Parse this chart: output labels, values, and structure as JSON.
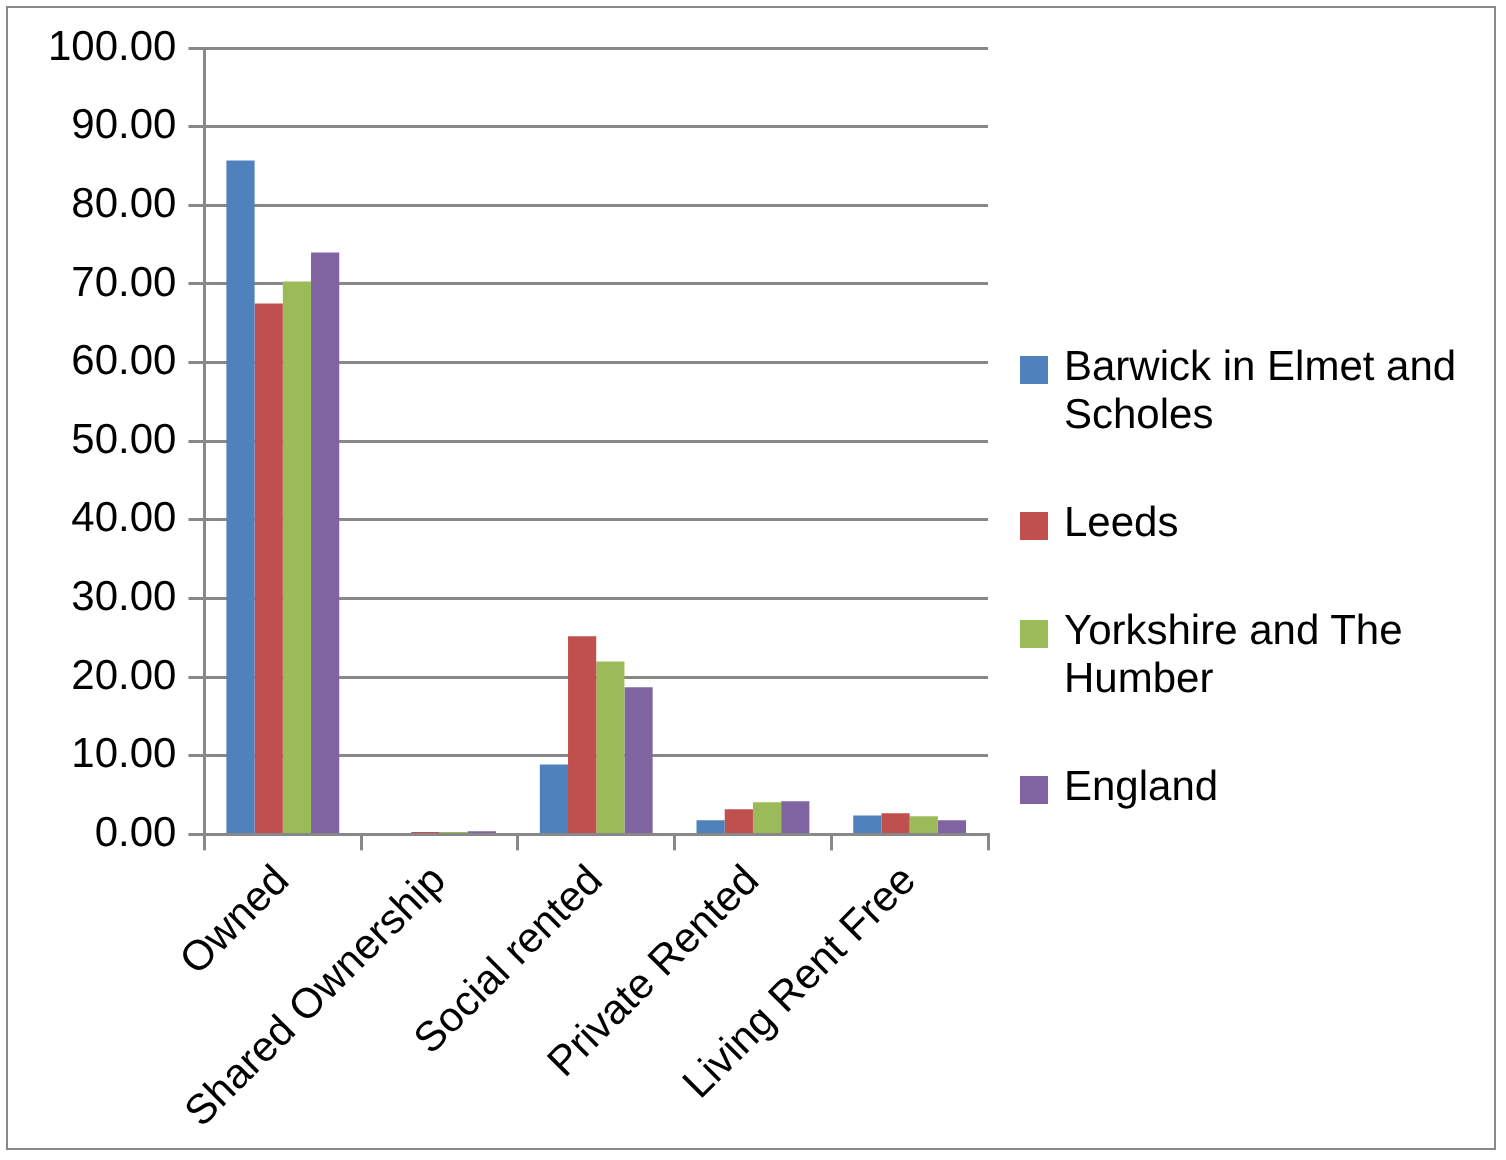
{
  "chart_data": {
    "type": "bar",
    "categories": [
      "Owned",
      "Shared Ownership",
      "Social rented",
      "Private Rented",
      "Living Rent Free"
    ],
    "series": [
      {
        "name": "Barwick in Elmet and Scholes",
        "color": "#4f81bd",
        "values": [
          85.7,
          null,
          8.9,
          1.8,
          2.4
        ]
      },
      {
        "name": "Leeds",
        "color": "#c0504d",
        "values": [
          67.5,
          0.3,
          25.2,
          3.2,
          2.7
        ]
      },
      {
        "name": "Yorkshire and The Humber",
        "color": "#9bbb59",
        "values": [
          70.3,
          0.3,
          22.0,
          4.1,
          2.3
        ]
      },
      {
        "name": "England",
        "color": "#8064a2",
        "values": [
          74.0,
          0.4,
          18.7,
          4.2,
          1.8
        ]
      }
    ],
    "ylim": [
      0,
      100
    ],
    "yticks": [
      {
        "value": 0,
        "label": "0.00"
      },
      {
        "value": 10,
        "label": "10.00"
      },
      {
        "value": 20,
        "label": "20.00"
      },
      {
        "value": 30,
        "label": "30.00"
      },
      {
        "value": 40,
        "label": "40.00"
      },
      {
        "value": 50,
        "label": "50.00"
      },
      {
        "value": 60,
        "label": "60.00"
      },
      {
        "value": 70,
        "label": "70.00"
      },
      {
        "value": 80,
        "label": "80.00"
      },
      {
        "value": 90,
        "label": "90.00"
      },
      {
        "value": 100,
        "label": "100.00"
      }
    ],
    "grid": "y",
    "legend": "right"
  }
}
